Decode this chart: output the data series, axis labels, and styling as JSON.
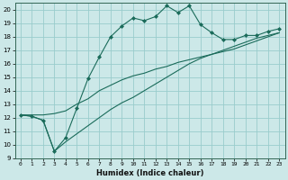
{
  "xlabel": "Humidex (Indice chaleur)",
  "bg_color": "#cce8e8",
  "grid_color": "#99cccc",
  "line_color": "#1a6b5a",
  "xlim": [
    -0.5,
    23.5
  ],
  "ylim": [
    9,
    20.5
  ],
  "yticks": [
    9,
    10,
    11,
    12,
    13,
    14,
    15,
    16,
    17,
    18,
    19,
    20
  ],
  "xticks": [
    0,
    1,
    2,
    3,
    4,
    5,
    6,
    7,
    8,
    9,
    10,
    11,
    12,
    13,
    14,
    15,
    16,
    17,
    18,
    19,
    20,
    21,
    22,
    23
  ],
  "line1_x": [
    0,
    1,
    2,
    3,
    4,
    5,
    6,
    7,
    8,
    9,
    10,
    11,
    12,
    13,
    14,
    15,
    16,
    17,
    18,
    19,
    20,
    21,
    22,
    23
  ],
  "line1_y": [
    12.2,
    12.1,
    11.8,
    9.5,
    10.5,
    12.7,
    14.9,
    16.5,
    18.0,
    18.8,
    19.4,
    19.2,
    19.5,
    20.3,
    19.8,
    20.3,
    18.9,
    18.3,
    17.8,
    17.8,
    18.1,
    18.1,
    18.4,
    18.6
  ],
  "line2_x": [
    0,
    1,
    2,
    3,
    4,
    5,
    6,
    7,
    8,
    9,
    10,
    11,
    12,
    13,
    14,
    15,
    16,
    17,
    18,
    19,
    20,
    21,
    22,
    23
  ],
  "line2_y": [
    12.2,
    12.2,
    12.2,
    12.3,
    12.5,
    13.0,
    13.4,
    14.0,
    14.4,
    14.8,
    15.1,
    15.3,
    15.6,
    15.8,
    16.1,
    16.3,
    16.5,
    16.7,
    16.9,
    17.1,
    17.4,
    17.7,
    18.0,
    18.3
  ],
  "line3_x": [
    0,
    1,
    2,
    3,
    4,
    5,
    6,
    7,
    8,
    9,
    10,
    11,
    12,
    13,
    14,
    15,
    16,
    17,
    18,
    19,
    20,
    21,
    22,
    23
  ],
  "line3_y": [
    12.2,
    12.1,
    11.8,
    9.5,
    10.2,
    10.8,
    11.4,
    12.0,
    12.6,
    13.1,
    13.5,
    14.0,
    14.5,
    15.0,
    15.5,
    16.0,
    16.4,
    16.7,
    17.0,
    17.3,
    17.6,
    17.9,
    18.1,
    18.3
  ]
}
